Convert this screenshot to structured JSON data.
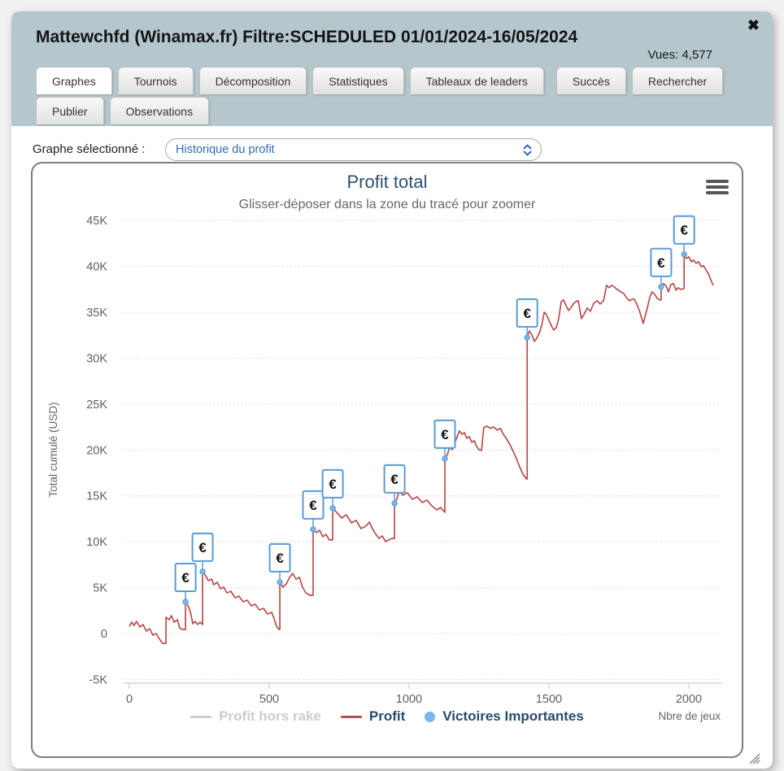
{
  "header": {
    "title": "Mattewchfd (Winamax.fr) Filtre:SCHEDULED 01/01/2024-16/05/2024",
    "views": "Vues: 4,577",
    "close_glyph": "✖"
  },
  "tabs": {
    "rows": [
      [
        {
          "label": "Graphes",
          "active": true
        },
        {
          "label": "Tournois",
          "active": false
        },
        {
          "label": "Décomposition",
          "active": false
        },
        {
          "label": "Statistiques",
          "active": false
        },
        {
          "label": "Tableaux de leaders",
          "active": false
        },
        {
          "label": "Succès",
          "active": false,
          "gap": true
        },
        {
          "label": "Rechercher",
          "active": false
        }
      ],
      [
        {
          "label": "Publier",
          "active": false
        },
        {
          "label": "Observations",
          "active": false
        }
      ]
    ]
  },
  "graph_selector": {
    "label": "Graphe sélectionné :",
    "value": "Historique du profit"
  },
  "chart_data": {
    "type": "line",
    "title": "Profit total",
    "subtitle": "Glisser-déposer dans la zone du tracé pour zoomer",
    "xlabel": "Nbre de jeux",
    "ylabel": "Total cumulé (USD)",
    "xlim": [
      0,
      2130
    ],
    "ylim": [
      -5000,
      45000
    ],
    "grid": "horizontal-dotted",
    "legend_position": "bottom-center",
    "euro_glyph": "€",
    "colors": {
      "profit_line": "#b94d4d",
      "marker_blue": "#7cb5ec",
      "marker_border": "#5b9bd5",
      "axis_line": "#ccd6eb",
      "grid_line": "#dcdcdc",
      "tick_text": "#606060",
      "legend_text": "#274b6d",
      "disabled_text": "#cccccc"
    },
    "x_ticks": [
      {
        "v": 0,
        "label": "0"
      },
      {
        "v": 500,
        "label": "500"
      },
      {
        "v": 1000,
        "label": "1000"
      },
      {
        "v": 1500,
        "label": "1500"
      },
      {
        "v": 2000,
        "label": "2000"
      }
    ],
    "y_ticks": [
      {
        "v": 45000,
        "label": "45K"
      },
      {
        "v": 40000,
        "label": "40K"
      },
      {
        "v": 35000,
        "label": "35K"
      },
      {
        "v": 30000,
        "label": "30K"
      },
      {
        "v": 25000,
        "label": "25K"
      },
      {
        "v": 20000,
        "label": "20K"
      },
      {
        "v": 15000,
        "label": "15K"
      },
      {
        "v": 10000,
        "label": "10K"
      },
      {
        "v": 5000,
        "label": "5K"
      },
      {
        "v": 0,
        "label": "0"
      },
      {
        "v": -5000,
        "label": "-5K"
      }
    ],
    "series": [
      {
        "name": "Profit hors rake",
        "type": "line",
        "color": "#cccccc",
        "text_color": "#cccccc",
        "enabled": false,
        "points": []
      },
      {
        "name": "Profit",
        "type": "line",
        "color": "#b94d4d",
        "text_color": "#274b6d",
        "enabled": true,
        "points": [
          [
            0,
            800
          ],
          [
            9,
            1240
          ],
          [
            17,
            890
          ],
          [
            26,
            1330
          ],
          [
            38,
            710
          ],
          [
            49,
            980
          ],
          [
            61,
            270
          ],
          [
            73,
            530
          ],
          [
            84,
            -180
          ],
          [
            96,
            0
          ],
          [
            108,
            -620
          ],
          [
            119,
            -1060
          ],
          [
            131,
            -1060
          ],
          [
            131,
            1780
          ],
          [
            142,
            1510
          ],
          [
            151,
            1950
          ],
          [
            160,
            1240
          ],
          [
            172,
            1510
          ],
          [
            180,
            620
          ],
          [
            189,
            440
          ],
          [
            201,
            440
          ],
          [
            201,
            3460
          ],
          [
            209,
            3100
          ],
          [
            218,
            2390
          ],
          [
            227,
            1060
          ],
          [
            235,
            1330
          ],
          [
            244,
            980
          ],
          [
            253,
            1240
          ],
          [
            262,
            980
          ],
          [
            262,
            6740
          ],
          [
            273,
            6300
          ],
          [
            282,
            5770
          ],
          [
            294,
            5940
          ],
          [
            302,
            5320
          ],
          [
            314,
            5590
          ],
          [
            326,
            4880
          ],
          [
            337,
            5060
          ],
          [
            349,
            4430
          ],
          [
            363,
            4610
          ],
          [
            378,
            3900
          ],
          [
            392,
            4080
          ],
          [
            407,
            3460
          ],
          [
            421,
            3640
          ],
          [
            436,
            3020
          ],
          [
            450,
            3190
          ],
          [
            465,
            2570
          ],
          [
            480,
            2750
          ],
          [
            494,
            2130
          ],
          [
            509,
            2310
          ],
          [
            517,
            1690
          ],
          [
            526,
            800
          ],
          [
            535,
            440
          ],
          [
            538,
            440
          ],
          [
            538,
            5590
          ],
          [
            549,
            5060
          ],
          [
            561,
            5410
          ],
          [
            573,
            6120
          ],
          [
            584,
            6560
          ],
          [
            596,
            5940
          ],
          [
            608,
            6120
          ],
          [
            619,
            5060
          ],
          [
            631,
            4430
          ],
          [
            645,
            4170
          ],
          [
            657,
            4170
          ],
          [
            657,
            11350
          ],
          [
            669,
            11000
          ],
          [
            680,
            11260
          ],
          [
            692,
            10550
          ],
          [
            703,
            10820
          ],
          [
            715,
            10200
          ],
          [
            727,
            10200
          ],
          [
            727,
            13660
          ],
          [
            741,
            13210
          ],
          [
            759,
            12590
          ],
          [
            776,
            12950
          ],
          [
            794,
            12060
          ],
          [
            811,
            12330
          ],
          [
            828,
            11440
          ],
          [
            846,
            11710
          ],
          [
            858,
            12150
          ],
          [
            869,
            11440
          ],
          [
            881,
            10820
          ],
          [
            893,
            10370
          ],
          [
            904,
            10640
          ],
          [
            916,
            10020
          ],
          [
            927,
            10200
          ],
          [
            939,
            10370
          ],
          [
            948,
            10370
          ],
          [
            948,
            14190
          ],
          [
            956,
            14630
          ],
          [
            965,
            15610
          ],
          [
            977,
            15080
          ],
          [
            994,
            15340
          ],
          [
            1012,
            14630
          ],
          [
            1029,
            14900
          ],
          [
            1047,
            14280
          ],
          [
            1064,
            14540
          ],
          [
            1081,
            13920
          ],
          [
            1099,
            13480
          ],
          [
            1113,
            13740
          ],
          [
            1128,
            13210
          ],
          [
            1128,
            19060
          ],
          [
            1137,
            19510
          ],
          [
            1145,
            20300
          ],
          [
            1154,
            20040
          ],
          [
            1163,
            20750
          ],
          [
            1172,
            21460
          ],
          [
            1180,
            22080
          ],
          [
            1189,
            21720
          ],
          [
            1198,
            21900
          ],
          [
            1206,
            21280
          ],
          [
            1215,
            21460
          ],
          [
            1224,
            20840
          ],
          [
            1233,
            21020
          ],
          [
            1241,
            20390
          ],
          [
            1250,
            20040
          ],
          [
            1259,
            19950
          ],
          [
            1267,
            22430
          ],
          [
            1279,
            22610
          ],
          [
            1291,
            22350
          ],
          [
            1302,
            22520
          ],
          [
            1314,
            22170
          ],
          [
            1326,
            22350
          ],
          [
            1337,
            21720
          ],
          [
            1349,
            21190
          ],
          [
            1361,
            20570
          ],
          [
            1372,
            19860
          ],
          [
            1384,
            19060
          ],
          [
            1395,
            18180
          ],
          [
            1407,
            17380
          ],
          [
            1419,
            16850
          ],
          [
            1422,
            16850
          ],
          [
            1422,
            32270
          ],
          [
            1430,
            32980
          ],
          [
            1439,
            32540
          ],
          [
            1448,
            31830
          ],
          [
            1456,
            32180
          ],
          [
            1465,
            32710
          ],
          [
            1474,
            33600
          ],
          [
            1483,
            35020
          ],
          [
            1491,
            34760
          ],
          [
            1500,
            34140
          ],
          [
            1509,
            33510
          ],
          [
            1517,
            33070
          ],
          [
            1526,
            33340
          ],
          [
            1535,
            34310
          ],
          [
            1544,
            36170
          ],
          [
            1552,
            36350
          ],
          [
            1561,
            35730
          ],
          [
            1570,
            35200
          ],
          [
            1578,
            35470
          ],
          [
            1587,
            35910
          ],
          [
            1596,
            36170
          ],
          [
            1605,
            36260
          ],
          [
            1616,
            34310
          ],
          [
            1625,
            34760
          ],
          [
            1637,
            35470
          ],
          [
            1648,
            35110
          ],
          [
            1660,
            36000
          ],
          [
            1672,
            36260
          ],
          [
            1683,
            35910
          ],
          [
            1695,
            36260
          ],
          [
            1706,
            37950
          ],
          [
            1715,
            37680
          ],
          [
            1724,
            37950
          ],
          [
            1733,
            37770
          ],
          [
            1744,
            37500
          ],
          [
            1756,
            37240
          ],
          [
            1767,
            37060
          ],
          [
            1779,
            36530
          ],
          [
            1788,
            36260
          ],
          [
            1797,
            36440
          ],
          [
            1805,
            36440
          ],
          [
            1814,
            35910
          ],
          [
            1823,
            35200
          ],
          [
            1832,
            34310
          ],
          [
            1837,
            33780
          ],
          [
            1849,
            35200
          ],
          [
            1861,
            36710
          ],
          [
            1869,
            37240
          ],
          [
            1878,
            36970
          ],
          [
            1887,
            36530
          ],
          [
            1895,
            36350
          ],
          [
            1901,
            36350
          ],
          [
            1901,
            37770
          ],
          [
            1910,
            38130
          ],
          [
            1919,
            37860
          ],
          [
            1927,
            37240
          ],
          [
            1936,
            38040
          ],
          [
            1945,
            38130
          ],
          [
            1954,
            37420
          ],
          [
            1962,
            37680
          ],
          [
            1971,
            37500
          ],
          [
            1983,
            37590
          ],
          [
            1983,
            41320
          ],
          [
            1991,
            40870
          ],
          [
            2000,
            41050
          ],
          [
            2009,
            40520
          ],
          [
            2017,
            40700
          ],
          [
            2026,
            40340
          ],
          [
            2035,
            40520
          ],
          [
            2044,
            39990
          ],
          [
            2052,
            40080
          ],
          [
            2061,
            39630
          ],
          [
            2070,
            39190
          ],
          [
            2078,
            38570
          ],
          [
            2087,
            37950
          ]
        ]
      },
      {
        "name": "Victoires Importantes",
        "type": "scatter",
        "color": "#7cb5ec",
        "text_color": "#274b6d",
        "enabled": true,
        "points": [
          [
            201,
            3460
          ],
          [
            262,
            6740
          ],
          [
            538,
            5590
          ],
          [
            657,
            11350
          ],
          [
            727,
            13660
          ],
          [
            948,
            14190
          ],
          [
            1128,
            19060
          ],
          [
            1422,
            32270
          ],
          [
            1901,
            37770
          ],
          [
            1983,
            41320
          ]
        ]
      }
    ]
  }
}
